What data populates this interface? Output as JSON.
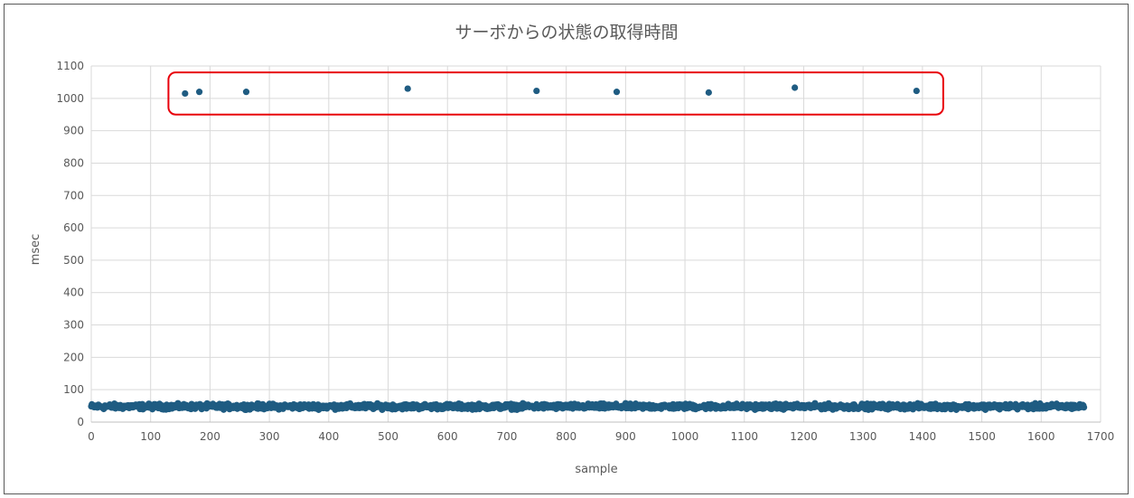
{
  "chart_data": {
    "type": "scatter",
    "title": "サーボからの状態の取得時間",
    "xlabel": "sample",
    "ylabel": "msec",
    "xlim": [
      0,
      1700
    ],
    "ylim": [
      0,
      1100
    ],
    "x_ticks": [
      0,
      100,
      200,
      300,
      400,
      500,
      600,
      700,
      800,
      900,
      1000,
      1100,
      1200,
      1300,
      1400,
      1500,
      1600,
      1700
    ],
    "y_ticks": [
      0,
      100,
      200,
      300,
      400,
      500,
      600,
      700,
      800,
      900,
      1000,
      1100
    ],
    "grid": true,
    "legend": "none",
    "series": [
      {
        "color": "#1f5c82",
        "baseline_band": {
          "x_range": [
            0,
            1672
          ],
          "typical": 48,
          "range": [
            38,
            58
          ]
        },
        "outliers": [
          {
            "x": 158,
            "y": 1015
          },
          {
            "x": 182,
            "y": 1020
          },
          {
            "x": 261,
            "y": 1020
          },
          {
            "x": 533,
            "y": 1030
          },
          {
            "x": 750,
            "y": 1023
          },
          {
            "x": 885,
            "y": 1020
          },
          {
            "x": 1040,
            "y": 1018
          },
          {
            "x": 1185,
            "y": 1033
          },
          {
            "x": 1390,
            "y": 1023
          }
        ]
      }
    ],
    "annotations": [
      {
        "type": "highlight-box",
        "color": "#e8000b",
        "x_range": [
          130,
          1435
        ],
        "y_range": [
          950,
          1080
        ]
      }
    ]
  }
}
